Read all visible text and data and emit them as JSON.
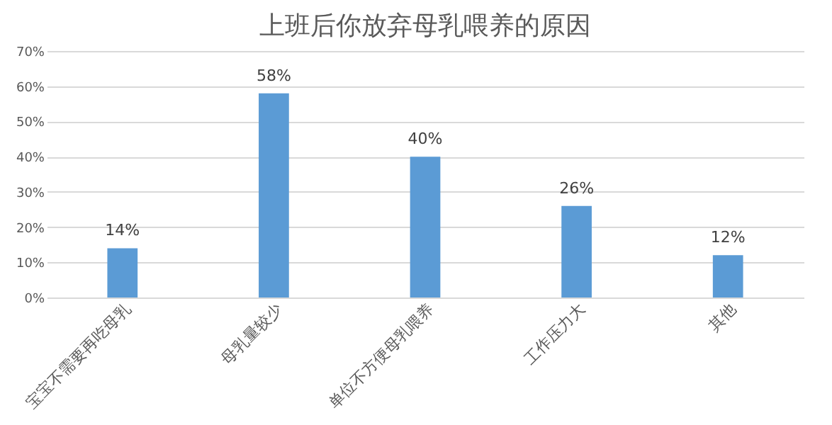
{
  "chart_data": {
    "type": "bar",
    "title": "上班后你放弃母乳喂养的原因",
    "categories": [
      "宝宝不需要再吃母乳",
      "母乳量较少",
      "单位不方便母乳喂养",
      "工作压力大",
      "其他"
    ],
    "values": [
      14,
      58,
      40,
      26,
      12
    ],
    "value_labels": [
      "14%",
      "58%",
      "40%",
      "26%",
      "12%"
    ],
    "color": "#5b9bd5",
    "ylim": [
      0,
      70
    ],
    "yticks": [
      {
        "value": 0,
        "label": "0%"
      },
      {
        "value": 10,
        "label": "10%"
      },
      {
        "value": 20,
        "label": "20%"
      },
      {
        "value": 30,
        "label": "30%"
      },
      {
        "value": 40,
        "label": "40%"
      },
      {
        "value": 50,
        "label": "50%"
      },
      {
        "value": 60,
        "label": "60%"
      },
      {
        "value": 70,
        "label": "70%"
      }
    ],
    "grid": "y"
  }
}
